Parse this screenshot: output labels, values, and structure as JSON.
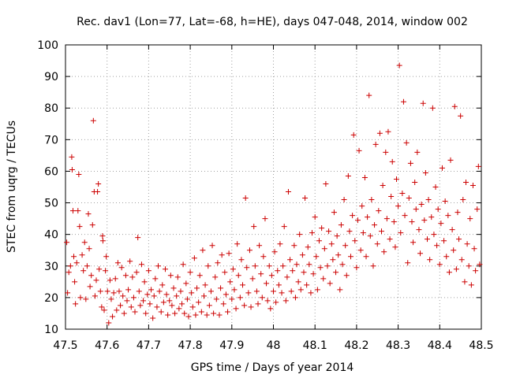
{
  "chart_data": {
    "type": "scatter",
    "title": "Rec. dav1 (Lon=77, Lat=-68, h=HE), days 047-048, 2014, window 002",
    "xlabel": "GPS time / Days of year 2014",
    "ylabel": "STEC from uqrg / TECUs",
    "xlim": [
      47.5,
      48.5
    ],
    "ylim": [
      10,
      100
    ],
    "xticks": [
      47.5,
      47.6,
      47.7,
      47.8,
      47.9,
      48.0,
      48.1,
      48.2,
      48.3,
      48.4,
      48.5
    ],
    "xtick_labels": [
      "47.5",
      "47.6",
      "47.7",
      "47.8",
      "47.9",
      "48",
      "48.1",
      "48.2",
      "48.3",
      "48.4",
      "48.5"
    ],
    "yticks": [
      10,
      20,
      30,
      40,
      50,
      60,
      70,
      80,
      90,
      100
    ],
    "ytick_labels": [
      "10",
      "20",
      "30",
      "40",
      "50",
      "60",
      "70",
      "80",
      "90",
      "100"
    ],
    "marker": "+",
    "color": "#cc0000",
    "legend": "none",
    "points": [
      [
        47.503,
        37.5
      ],
      [
        47.505,
        21.5
      ],
      [
        47.508,
        28.0
      ],
      [
        47.512,
        30.0
      ],
      [
        47.515,
        64.5
      ],
      [
        47.516,
        60.5
      ],
      [
        47.518,
        47.5
      ],
      [
        47.52,
        33.0
      ],
      [
        47.522,
        25.0
      ],
      [
        47.524,
        18.0
      ],
      [
        47.527,
        31.0
      ],
      [
        47.53,
        47.5
      ],
      [
        47.532,
        59.0
      ],
      [
        47.534,
        42.5
      ],
      [
        47.536,
        20.0
      ],
      [
        47.54,
        33.5
      ],
      [
        47.543,
        28.5
      ],
      [
        47.546,
        37.5
      ],
      [
        47.549,
        19.5
      ],
      [
        47.552,
        30.0
      ],
      [
        47.555,
        46.5
      ],
      [
        47.557,
        35.5
      ],
      [
        47.559,
        23.5
      ],
      [
        47.562,
        27.0
      ],
      [
        47.565,
        43.0
      ],
      [
        47.567,
        76.0
      ],
      [
        47.569,
        53.5
      ],
      [
        47.571,
        20.5
      ],
      [
        47.574,
        25.5
      ],
      [
        47.577,
        53.5
      ],
      [
        47.579,
        56.0
      ],
      [
        47.581,
        29.0
      ],
      [
        47.584,
        22.0
      ],
      [
        47.587,
        17.0
      ],
      [
        47.589,
        39.5
      ],
      [
        47.59,
        38.0
      ],
      [
        47.593,
        16.0
      ],
      [
        47.596,
        28.5
      ],
      [
        47.598,
        33.0
      ],
      [
        47.601,
        22.0
      ],
      [
        47.604,
        12.0
      ],
      [
        47.607,
        25.5
      ],
      [
        47.61,
        19.5
      ],
      [
        47.613,
        14.0
      ],
      [
        47.616,
        21.5
      ],
      [
        47.62,
        26.0
      ],
      [
        47.623,
        16.0
      ],
      [
        47.626,
        31.0
      ],
      [
        47.629,
        22.0
      ],
      [
        47.632,
        17.5
      ],
      [
        47.635,
        29.5
      ],
      [
        47.638,
        20.5
      ],
      [
        47.641,
        15.0
      ],
      [
        47.645,
        27.0
      ],
      [
        47.648,
        19.0
      ],
      [
        47.651,
        22.5
      ],
      [
        47.655,
        31.5
      ],
      [
        47.658,
        17.0
      ],
      [
        47.661,
        26.5
      ],
      [
        47.664,
        20.0
      ],
      [
        47.667,
        15.5
      ],
      [
        47.671,
        28.0
      ],
      [
        47.674,
        39.0
      ],
      [
        47.677,
        22.0
      ],
      [
        47.68,
        17.5
      ],
      [
        47.683,
        30.5
      ],
      [
        47.687,
        19.0
      ],
      [
        47.69,
        25.0
      ],
      [
        47.693,
        15.0
      ],
      [
        47.697,
        21.0
      ],
      [
        47.7,
        28.5
      ],
      [
        47.703,
        18.0
      ],
      [
        47.706,
        22.5
      ],
      [
        47.71,
        13.5
      ],
      [
        47.713,
        20.5
      ],
      [
        47.716,
        26.0
      ],
      [
        47.72,
        17.0
      ],
      [
        47.723,
        30.0
      ],
      [
        47.726,
        22.0
      ],
      [
        47.73,
        15.5
      ],
      [
        47.733,
        24.0
      ],
      [
        47.736,
        18.5
      ],
      [
        47.74,
        29.0
      ],
      [
        47.743,
        21.0
      ],
      [
        47.746,
        14.5
      ],
      [
        47.75,
        19.0
      ],
      [
        47.753,
        27.0
      ],
      [
        47.756,
        17.5
      ],
      [
        47.76,
        23.0
      ],
      [
        47.763,
        15.0
      ],
      [
        47.767,
        20.5
      ],
      [
        47.77,
        26.5
      ],
      [
        47.773,
        16.5
      ],
      [
        47.777,
        22.0
      ],
      [
        47.78,
        18.0
      ],
      [
        47.783,
        30.5
      ],
      [
        47.786,
        15.0
      ],
      [
        47.79,
        24.5
      ],
      [
        47.793,
        19.5
      ],
      [
        47.796,
        14.0
      ],
      [
        47.8,
        28.0
      ],
      [
        47.803,
        21.5
      ],
      [
        47.806,
        17.0
      ],
      [
        47.81,
        32.5
      ],
      [
        47.813,
        14.5
      ],
      [
        47.816,
        23.0
      ],
      [
        47.82,
        18.5
      ],
      [
        47.823,
        27.0
      ],
      [
        47.827,
        15.5
      ],
      [
        47.83,
        35.0
      ],
      [
        47.833,
        20.5
      ],
      [
        47.836,
        24.0
      ],
      [
        47.84,
        14.5
      ],
      [
        47.843,
        30.0
      ],
      [
        47.846,
        17.5
      ],
      [
        47.85,
        22.0
      ],
      [
        47.853,
        36.5
      ],
      [
        47.856,
        15.0
      ],
      [
        47.86,
        26.5
      ],
      [
        47.863,
        19.5
      ],
      [
        47.866,
        31.0
      ],
      [
        47.87,
        14.5
      ],
      [
        47.873,
        23.0
      ],
      [
        47.876,
        33.5
      ],
      [
        47.88,
        18.0
      ],
      [
        47.883,
        28.0
      ],
      [
        47.886,
        21.0
      ],
      [
        47.89,
        15.5
      ],
      [
        47.893,
        34.0
      ],
      [
        47.896,
        25.0
      ],
      [
        47.9,
        19.5
      ],
      [
        47.903,
        29.0
      ],
      [
        47.906,
        22.5
      ],
      [
        47.91,
        16.5
      ],
      [
        47.913,
        37.0
      ],
      [
        47.916,
        27.0
      ],
      [
        47.92,
        20.0
      ],
      [
        47.923,
        32.0
      ],
      [
        47.926,
        24.0
      ],
      [
        47.93,
        17.5
      ],
      [
        47.933,
        51.5
      ],
      [
        47.936,
        29.5
      ],
      [
        47.94,
        21.5
      ],
      [
        47.943,
        35.0
      ],
      [
        47.946,
        17.0
      ],
      [
        47.95,
        26.0
      ],
      [
        47.953,
        42.5
      ],
      [
        47.956,
        30.0
      ],
      [
        47.96,
        22.0
      ],
      [
        47.963,
        18.0
      ],
      [
        47.966,
        36.5
      ],
      [
        47.97,
        27.5
      ],
      [
        47.973,
        20.0
      ],
      [
        47.976,
        33.0
      ],
      [
        47.98,
        45.0
      ],
      [
        47.983,
        24.5
      ],
      [
        47.986,
        19.0
      ],
      [
        47.99,
        30.0
      ],
      [
        47.993,
        16.5
      ],
      [
        47.996,
        27.0
      ],
      [
        48.0,
        22.0
      ],
      [
        48.003,
        34.5
      ],
      [
        48.006,
        18.5
      ],
      [
        48.01,
        28.5
      ],
      [
        48.013,
        24.0
      ],
      [
        48.016,
        37.0
      ],
      [
        48.02,
        21.5
      ],
      [
        48.023,
        30.0
      ],
      [
        48.026,
        42.5
      ],
      [
        48.03,
        19.0
      ],
      [
        48.033,
        26.5
      ],
      [
        48.036,
        53.5
      ],
      [
        48.04,
        32.0
      ],
      [
        48.043,
        22.0
      ],
      [
        48.046,
        28.5
      ],
      [
        48.05,
        36.5
      ],
      [
        48.053,
        20.0
      ],
      [
        48.056,
        30.5
      ],
      [
        48.06,
        25.0
      ],
      [
        48.063,
        40.0
      ],
      [
        48.066,
        22.5
      ],
      [
        48.07,
        33.5
      ],
      [
        48.073,
        28.0
      ],
      [
        48.076,
        51.5
      ],
      [
        48.08,
        24.0
      ],
      [
        48.083,
        36.0
      ],
      [
        48.086,
        30.5
      ],
      [
        48.09,
        21.5
      ],
      [
        48.093,
        40.5
      ],
      [
        48.096,
        27.5
      ],
      [
        48.1,
        45.5
      ],
      [
        48.103,
        33.0
      ],
      [
        48.106,
        22.5
      ],
      [
        48.11,
        38.0
      ],
      [
        48.113,
        29.5
      ],
      [
        48.116,
        42.0
      ],
      [
        48.12,
        26.0
      ],
      [
        48.123,
        35.5
      ],
      [
        48.126,
        56.0
      ],
      [
        48.13,
        30.0
      ],
      [
        48.133,
        41.0
      ],
      [
        48.136,
        24.5
      ],
      [
        48.14,
        37.0
      ],
      [
        48.143,
        32.0
      ],
      [
        48.146,
        47.0
      ],
      [
        48.15,
        28.0
      ],
      [
        48.153,
        39.5
      ],
      [
        48.156,
        33.5
      ],
      [
        48.16,
        22.5
      ],
      [
        48.163,
        43.0
      ],
      [
        48.166,
        30.5
      ],
      [
        48.17,
        51.0
      ],
      [
        48.173,
        36.5
      ],
      [
        48.176,
        27.0
      ],
      [
        48.18,
        58.5
      ],
      [
        48.183,
        41.0
      ],
      [
        48.186,
        33.0
      ],
      [
        48.19,
        46.0
      ],
      [
        48.193,
        71.5
      ],
      [
        48.196,
        38.0
      ],
      [
        48.2,
        29.5
      ],
      [
        48.203,
        44.5
      ],
      [
        48.206,
        66.5
      ],
      [
        48.21,
        35.0
      ],
      [
        48.213,
        49.0
      ],
      [
        48.216,
        40.5
      ],
      [
        48.22,
        58.0
      ],
      [
        48.223,
        33.0
      ],
      [
        48.226,
        45.5
      ],
      [
        48.23,
        84.0
      ],
      [
        48.233,
        39.5
      ],
      [
        48.236,
        51.0
      ],
      [
        48.24,
        30.0
      ],
      [
        48.243,
        43.0
      ],
      [
        48.246,
        68.5
      ],
      [
        48.25,
        37.0
      ],
      [
        48.253,
        47.5
      ],
      [
        48.256,
        72.0
      ],
      [
        48.26,
        41.0
      ],
      [
        48.263,
        55.5
      ],
      [
        48.266,
        34.5
      ],
      [
        48.27,
        66.0
      ],
      [
        48.273,
        45.0
      ],
      [
        48.276,
        72.5
      ],
      [
        48.28,
        38.5
      ],
      [
        48.283,
        52.0
      ],
      [
        48.286,
        63.0
      ],
      [
        48.29,
        44.0
      ],
      [
        48.293,
        36.0
      ],
      [
        48.296,
        57.5
      ],
      [
        48.3,
        49.0
      ],
      [
        48.303,
        93.5
      ],
      [
        48.306,
        40.5
      ],
      [
        48.31,
        53.0
      ],
      [
        48.313,
        82.0
      ],
      [
        48.316,
        46.0
      ],
      [
        48.32,
        69.0
      ],
      [
        48.323,
        31.0
      ],
      [
        48.326,
        51.5
      ],
      [
        48.33,
        62.5
      ],
      [
        48.333,
        44.0
      ],
      [
        48.336,
        37.5
      ],
      [
        48.34,
        56.5
      ],
      [
        48.343,
        48.0
      ],
      [
        48.346,
        66.0
      ],
      [
        48.35,
        41.5
      ],
      [
        48.353,
        34.0
      ],
      [
        48.356,
        49.5
      ],
      [
        48.36,
        81.5
      ],
      [
        48.363,
        44.5
      ],
      [
        48.366,
        59.5
      ],
      [
        48.37,
        38.5
      ],
      [
        48.373,
        51.0
      ],
      [
        48.376,
        32.0
      ],
      [
        48.38,
        45.5
      ],
      [
        48.383,
        80.0
      ],
      [
        48.386,
        40.0
      ],
      [
        48.39,
        55.0
      ],
      [
        48.393,
        36.5
      ],
      [
        48.396,
        48.0
      ],
      [
        48.4,
        30.5
      ],
      [
        48.403,
        43.5
      ],
      [
        48.406,
        61.0
      ],
      [
        48.41,
        38.0
      ],
      [
        48.413,
        50.5
      ],
      [
        48.416,
        33.0
      ],
      [
        48.42,
        46.0
      ],
      [
        48.423,
        28.0
      ],
      [
        48.426,
        63.5
      ],
      [
        48.43,
        41.5
      ],
      [
        48.433,
        35.0
      ],
      [
        48.436,
        80.5
      ],
      [
        48.44,
        29.0
      ],
      [
        48.443,
        47.0
      ],
      [
        48.446,
        38.5
      ],
      [
        48.45,
        77.5
      ],
      [
        48.453,
        32.0
      ],
      [
        48.456,
        51.0
      ],
      [
        48.46,
        25.0
      ],
      [
        48.463,
        56.5
      ],
      [
        48.466,
        37.0
      ],
      [
        48.47,
        30.0
      ],
      [
        48.473,
        45.0
      ],
      [
        48.476,
        24.0
      ],
      [
        48.48,
        55.5
      ],
      [
        48.483,
        35.5
      ],
      [
        48.486,
        28.5
      ],
      [
        48.49,
        48.0
      ],
      [
        48.493,
        61.5
      ],
      [
        48.496,
        30.5
      ]
    ]
  }
}
